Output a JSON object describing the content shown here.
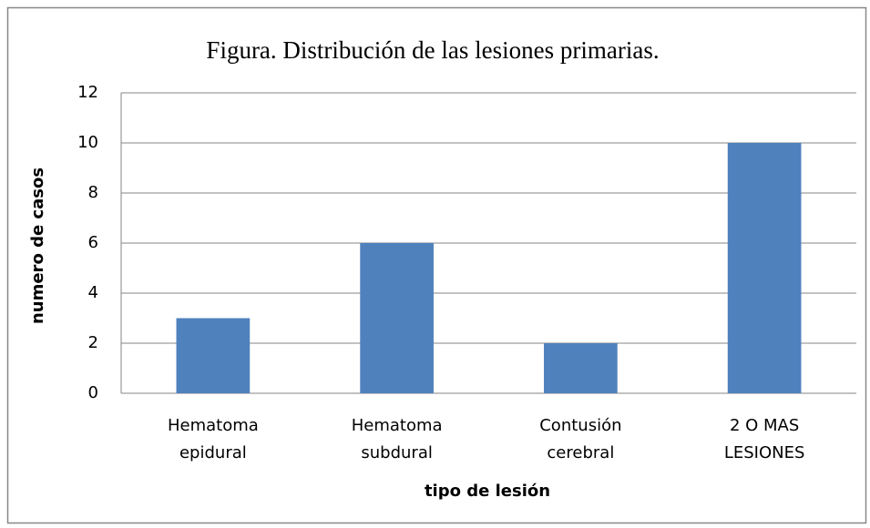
{
  "chart_data": {
    "type": "bar",
    "title": "Figura. Distribución de las lesiones primarias.",
    "categories": [
      [
        "Hematoma",
        "epidural"
      ],
      [
        "Hematoma",
        "subdural"
      ],
      [
        "Contusión",
        "cerebral"
      ],
      [
        "2 O MAS",
        "LESIONES"
      ]
    ],
    "values": [
      3,
      6,
      2,
      10
    ],
    "color": "#4f81bd",
    "ylim": [
      0,
      12
    ],
    "yticks": [
      0,
      2,
      4,
      6,
      8,
      10,
      12
    ],
    "grid": true,
    "xlabel": "tipo de lesión",
    "ylabel": "numero de casos"
  }
}
